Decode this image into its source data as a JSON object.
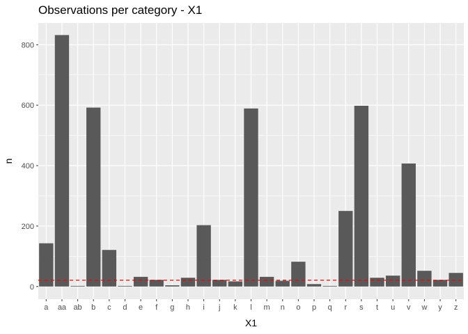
{
  "chart_data": {
    "type": "bar",
    "title": "Observations per category - X1",
    "xlabel": "X1",
    "ylabel": "n",
    "categories": [
      "a",
      "aa",
      "ab",
      "b",
      "c",
      "d",
      "e",
      "f",
      "g",
      "h",
      "i",
      "j",
      "k",
      "l",
      "m",
      "n",
      "o",
      "p",
      "q",
      "r",
      "s",
      "t",
      "u",
      "v",
      "w",
      "y",
      "z"
    ],
    "values": [
      143,
      832,
      2,
      592,
      121,
      2,
      32,
      22,
      4,
      29,
      203,
      22,
      17,
      589,
      32,
      19,
      82,
      8,
      2,
      250,
      598,
      29,
      36,
      407,
      52,
      22,
      45
    ],
    "reference_line": {
      "value": 21,
      "color": "#ff0000",
      "style": "dashed"
    },
    "y_ticks": [
      0,
      200,
      400,
      600,
      800
    ],
    "ylim": [
      -42,
      872
    ],
    "grid": true,
    "bar_color": "#595959",
    "panel_color": "#ebebeb"
  }
}
